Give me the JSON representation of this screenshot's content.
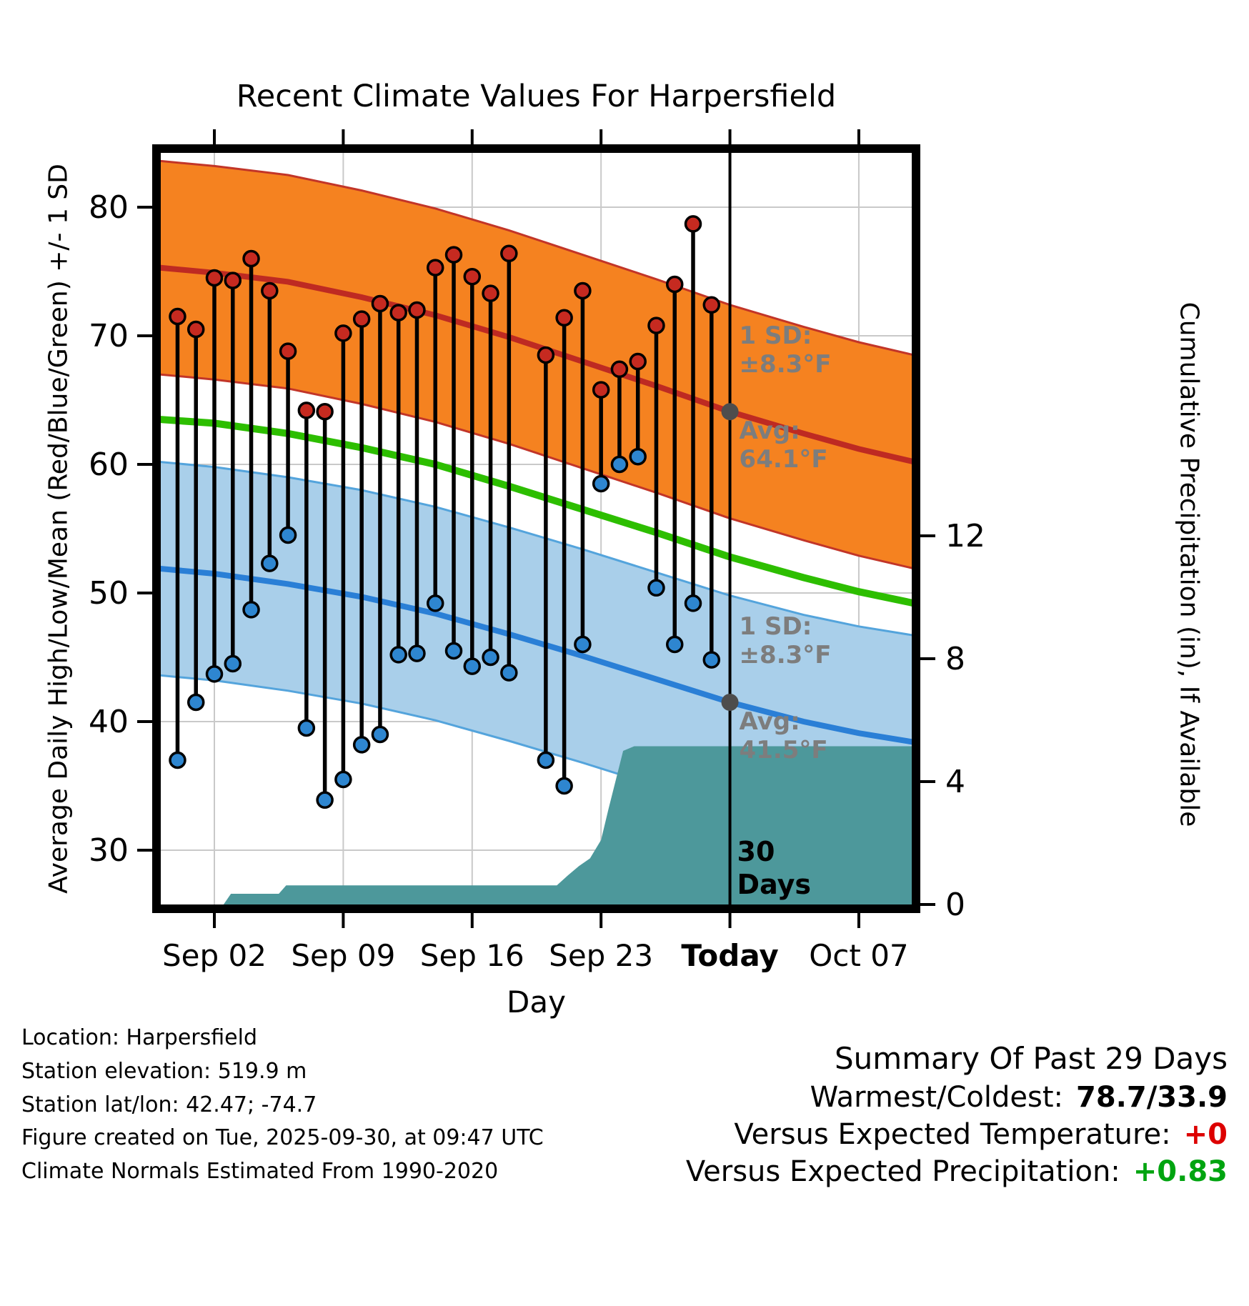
{
  "title": "Recent Climate Values For Harpersfield",
  "axes": {
    "x_label": "Day",
    "left_label": "Average Daily High/Low/Mean (Red/Blue/Green) +/- 1 SD",
    "right_label": "Cumulative Precipitation (in), If Available",
    "left_ticks": [
      30,
      40,
      50,
      60,
      70,
      80
    ],
    "right_ticks": [
      0,
      4,
      8,
      12
    ],
    "x_ticks": [
      {
        "label": "Sep 02",
        "day": 2,
        "bold": false
      },
      {
        "label": "Sep 09",
        "day": 9,
        "bold": false
      },
      {
        "label": "Sep 16",
        "day": 16,
        "bold": false
      },
      {
        "label": "Sep 23",
        "day": 23,
        "bold": false
      },
      {
        "label": "Today",
        "day": 30,
        "bold": true
      },
      {
        "label": "Oct 07",
        "day": 37,
        "bold": false
      }
    ]
  },
  "chart_data": {
    "type": "line",
    "day_index_reference": "Sep 02 = 2, Today (Sep 30) = 30",
    "today_day": 30,
    "temp_axis_range": [
      25.5,
      84.5
    ],
    "precip_axis_range": [
      0,
      24.5
    ],
    "sd_band": 8.3,
    "daily_high_low": [
      {
        "day": 0,
        "high": 71.5,
        "low": 37.0
      },
      {
        "day": 1,
        "high": 70.5,
        "low": 41.5
      },
      {
        "day": 2,
        "high": 74.5,
        "low": 43.7
      },
      {
        "day": 3,
        "high": 74.3,
        "low": 44.5
      },
      {
        "day": 4,
        "high": 76.0,
        "low": 48.7
      },
      {
        "day": 5,
        "high": 73.5,
        "low": 52.3
      },
      {
        "day": 6,
        "high": 68.8,
        "low": 54.5
      },
      {
        "day": 7,
        "high": 64.2,
        "low": 39.5
      },
      {
        "day": 8,
        "high": 64.1,
        "low": 33.9
      },
      {
        "day": 9,
        "high": 70.2,
        "low": 35.5
      },
      {
        "day": 10,
        "high": 71.3,
        "low": 38.2
      },
      {
        "day": 11,
        "high": 72.5,
        "low": 39.0
      },
      {
        "day": 12,
        "high": 71.8,
        "low": 45.2
      },
      {
        "day": 13,
        "high": 72.0,
        "low": 45.3
      },
      {
        "day": 14,
        "high": 75.3,
        "low": 49.2
      },
      {
        "day": 15,
        "high": 76.3,
        "low": 45.5
      },
      {
        "day": 16,
        "high": 74.6,
        "low": 44.3
      },
      {
        "day": 17,
        "high": 73.3,
        "low": 45.0
      },
      {
        "day": 18,
        "high": 76.4,
        "low": 43.8
      },
      {
        "day": 20,
        "high": 68.5,
        "low": 37.0
      },
      {
        "day": 21,
        "high": 71.4,
        "low": 35.0
      },
      {
        "day": 22,
        "high": 73.5,
        "low": 46.0
      },
      {
        "day": 23,
        "high": 65.8,
        "low": 58.5
      },
      {
        "day": 24,
        "high": 67.4,
        "low": 60.0
      },
      {
        "day": 25,
        "high": 68.0,
        "low": 60.6
      },
      {
        "day": 26,
        "high": 70.8,
        "low": 50.4
      },
      {
        "day": 27,
        "high": 74.0,
        "low": 46.0
      },
      {
        "day": 28,
        "high": 78.7,
        "low": 49.2
      },
      {
        "day": 29,
        "high": 72.4,
        "low": 44.8
      }
    ],
    "climatology_high_mean": [
      [
        -1,
        75.3
      ],
      [
        2,
        74.9
      ],
      [
        6,
        74.2
      ],
      [
        10,
        73.0
      ],
      [
        14,
        71.6
      ],
      [
        18,
        69.9
      ],
      [
        22,
        68.0
      ],
      [
        26,
        66.1
      ],
      [
        30,
        64.1
      ],
      [
        34,
        62.4
      ],
      [
        37,
        61.2
      ],
      [
        40,
        60.2
      ]
    ],
    "climatology_low_mean": [
      [
        -1,
        51.9
      ],
      [
        2,
        51.5
      ],
      [
        6,
        50.7
      ],
      [
        10,
        49.7
      ],
      [
        14,
        48.4
      ],
      [
        18,
        46.8
      ],
      [
        22,
        45.1
      ],
      [
        26,
        43.3
      ],
      [
        30,
        41.5
      ],
      [
        34,
        40.0
      ],
      [
        37,
        39.1
      ],
      [
        40,
        38.4
      ]
    ],
    "climatology_mean": [
      [
        -1,
        63.5
      ],
      [
        2,
        63.2
      ],
      [
        6,
        62.4
      ],
      [
        10,
        61.3
      ],
      [
        14,
        60.0
      ],
      [
        18,
        58.3
      ],
      [
        22,
        56.5
      ],
      [
        26,
        54.7
      ],
      [
        30,
        52.8
      ],
      [
        34,
        51.2
      ],
      [
        37,
        50.1
      ],
      [
        40,
        49.2
      ]
    ],
    "cumulative_precip": [
      [
        -0.9,
        0
      ],
      [
        2.5,
        0
      ],
      [
        2.9,
        0.35
      ],
      [
        5.5,
        0.35
      ],
      [
        5.9,
        0.62
      ],
      [
        20.6,
        0.62
      ],
      [
        21.2,
        0.95
      ],
      [
        21.8,
        1.25
      ],
      [
        22.4,
        1.5
      ],
      [
        23.0,
        2.1
      ],
      [
        23.4,
        3.1
      ],
      [
        24.2,
        5.0
      ],
      [
        24.8,
        5.15
      ],
      [
        40.2,
        5.15
      ]
    ]
  },
  "annotations": {
    "high": {
      "sd_label": "1 SD:",
      "sd_value": "±8.3°F",
      "avg_label": "Avg:",
      "avg_value": "64.1°F"
    },
    "low": {
      "sd_label": "1 SD:",
      "sd_value": "±8.3°F",
      "avg_label": "Avg:",
      "avg_value": "41.5°F"
    },
    "today_marker": {
      "line1": "30",
      "line2": "Days"
    }
  },
  "colors": {
    "high_band_fill": "#F58220",
    "high_band_edge": "#C23528",
    "high_mean_line": "#BE2A22",
    "low_band_fill": "#A9CFEA",
    "low_band_edge": "#54A4DC",
    "low_mean_line": "#2A7FD6",
    "mean_line": "#2DBE00",
    "precip_fill": "#4D989B",
    "high_dot": "#C62A20",
    "low_dot": "#2E86D0",
    "annotation_gray": "#7D7D7D",
    "grid_gray": "#c9c9c9",
    "avg_dot": "#4d4d4d"
  },
  "footer": {
    "lines": [
      "Location: Harpersfield",
      "Station elevation: 519.9 m",
      "Station lat/lon: 42.47; -74.7",
      "Figure created on Tue, 2025-09-30, at 09:47 UTC",
      "Climate Normals Estimated From 1990-2020"
    ]
  },
  "summary": {
    "title": "Summary Of Past 29 Days",
    "rows": [
      {
        "label": "Warmest/Coldest:",
        "value": "78.7/33.9",
        "color": "#000000"
      },
      {
        "label": "Versus Expected Temperature:",
        "value": "+0",
        "color": "#DD0000"
      },
      {
        "label": "Versus Expected Precipitation:",
        "value": "+0.83",
        "color": "#00A410"
      }
    ]
  }
}
